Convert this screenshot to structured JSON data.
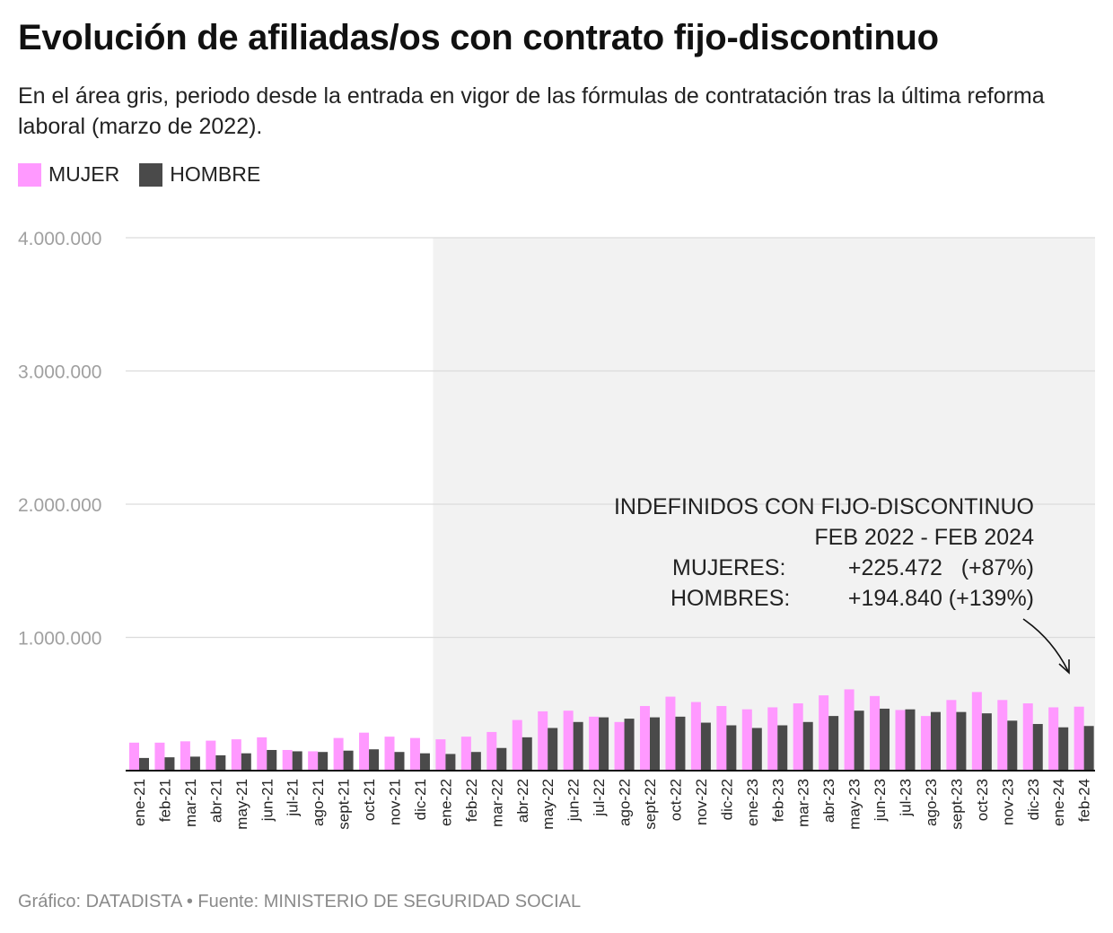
{
  "title": "Evolución de afiliadas/os con contrato fijo-discontinuo",
  "subtitle": "En el área gris, periodo desde la entrada en vigor de las fórmulas de contratación tras la última reforma laboral (marzo de 2022).",
  "legend": [
    {
      "label": "MUJER",
      "color": "#ff99ff"
    },
    {
      "label": "HOMBRE",
      "color": "#4a4a4a"
    }
  ],
  "footer": "Gráfico: DATADISTA • Fuente: MINISTERIO DE SEGURIDAD SOCIAL",
  "annotation": {
    "line1": "INDEFINIDOS CON FIJO-DISCONTINUO",
    "line2": "FEB 2022 - FEB 2024",
    "row1_label": "MUJERES:",
    "row1_value": "+225.472   (+87%)",
    "row2_label": "HOMBRES:",
    "row2_value": "+194.840 (+139%)"
  },
  "chart_data": {
    "type": "bar",
    "ylim": [
      0,
      4000000
    ],
    "yticks": [
      1000000,
      2000000,
      3000000,
      4000000
    ],
    "ytick_labels": [
      "1.000.000",
      "2.000.000",
      "3.000.000",
      "4.000.000"
    ],
    "shaded_from": "ene-22",
    "categories": [
      "ene-21",
      "feb-21",
      "mar-21",
      "abr-21",
      "may-21",
      "jun-21",
      "jul-21",
      "ago-21",
      "sept-21",
      "oct-21",
      "nov-21",
      "dic-21",
      "ene-22",
      "feb-22",
      "mar-22",
      "abr-22",
      "may-22",
      "jun-22",
      "jul-22",
      "ago-22",
      "sept-22",
      "oct-22",
      "nov-22",
      "dic-22",
      "ene-23",
      "feb-23",
      "mar-23",
      "abr-23",
      "may-23",
      "jun-23",
      "jul-23",
      "ago-23",
      "sept-23",
      "oct-23",
      "nov-23",
      "dic-23",
      "ene-24",
      "feb-24"
    ],
    "series": [
      {
        "name": "MUJER",
        "color": "#ff99ff",
        "values": [
          210000,
          210000,
          220000,
          225000,
          235000,
          250000,
          155000,
          145000,
          245000,
          285000,
          255000,
          245000,
          235000,
          255000,
          290000,
          380000,
          445000,
          450000,
          405000,
          365000,
          485000,
          555000,
          515000,
          485000,
          460000,
          475000,
          505000,
          565000,
          610000,
          560000,
          455000,
          410000,
          530000,
          590000,
          530000,
          505000,
          475000,
          480000
        ]
      },
      {
        "name": "HOMBRE",
        "color": "#4a4a4a",
        "values": [
          95000,
          100000,
          105000,
          115000,
          130000,
          155000,
          145000,
          140000,
          150000,
          160000,
          140000,
          130000,
          125000,
          140000,
          170000,
          250000,
          320000,
          365000,
          400000,
          390000,
          400000,
          405000,
          360000,
          340000,
          320000,
          340000,
          365000,
          410000,
          450000,
          465000,
          460000,
          440000,
          440000,
          430000,
          375000,
          350000,
          325000,
          335000
        ]
      }
    ]
  }
}
